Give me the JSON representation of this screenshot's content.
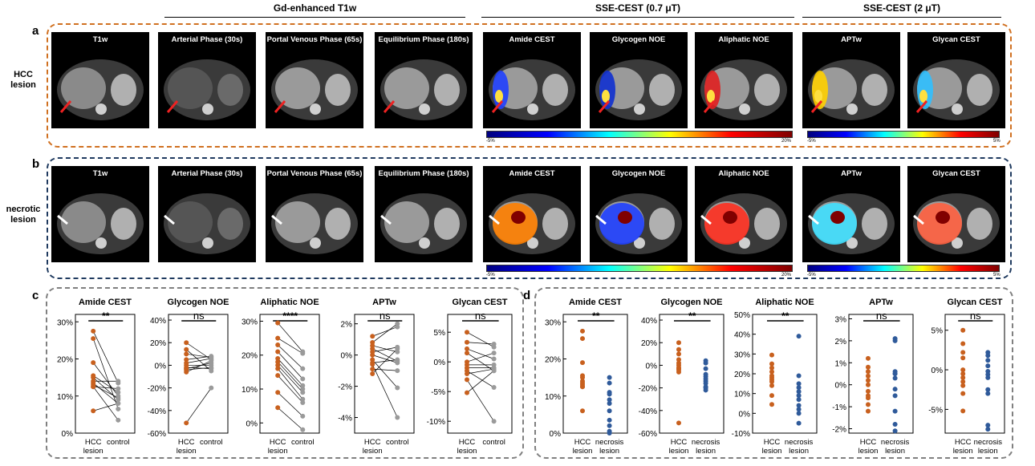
{
  "headers": {
    "gd": "Gd-enhanced T1w",
    "sse07": "SSE-CEST (0.7 μT)",
    "sse2": "SSE-CEST (2 μT)"
  },
  "panels": {
    "a": "a",
    "b": "b",
    "c": "c",
    "d": "d"
  },
  "rows": {
    "a_label_1": "HCC",
    "a_label_2": "lesion",
    "b_label_1": "necrotic",
    "b_label_2": "lesion"
  },
  "image_titles": [
    "T1w",
    "Arterial  Phase (30s)",
    "Portal Venous Phase (65s)",
    "Equilibrium  Phase (180s)",
    "Amide CEST",
    "Glycogen NOE",
    "Aliphatic  NOE",
    "APTw",
    "Glycan  CEST"
  ],
  "colorbars": {
    "sse07": {
      "min": "-5%",
      "max": "20%"
    },
    "sse2": {
      "min": "-5%",
      "max": "5%"
    }
  },
  "colors": {
    "hcc": "#C8601E",
    "control": "#9A9A9A",
    "necrosis": "#2F5A9A",
    "box_a": "#D07020",
    "box_b": "#1F3A5F",
    "box_cd": "#808080"
  },
  "chart_data": [
    {
      "panel": "c",
      "type": "scatter",
      "title": "Amide CEST",
      "sig": "**",
      "categories": [
        "HCC lesion",
        "control"
      ],
      "ylim": [
        0,
        32
      ],
      "yticks": [
        0,
        10,
        20,
        30
      ],
      "tick_labels": [
        "0%",
        "10%",
        "20%",
        "30%"
      ],
      "series": [
        {
          "name": "HCC lesion",
          "values": [
            27.5,
            25.5,
            19,
            15.5,
            15,
            14,
            13.5,
            13,
            12.5,
            12.5,
            6
          ]
        },
        {
          "name": "control",
          "values": [
            13.5,
            6.5,
            10,
            11,
            9,
            14,
            8,
            9.5,
            12,
            3.5,
            8
          ]
        }
      ]
    },
    {
      "panel": "c",
      "type": "scatter",
      "title": "Glycogen NOE",
      "sig": "ns",
      "categories": [
        "HCC lesion",
        "control"
      ],
      "ylim": [
        -60,
        45
      ],
      "yticks": [
        -60,
        -40,
        -20,
        0,
        20,
        40
      ],
      "tick_labels": [
        "-60%",
        "-40%",
        "-20%",
        "0%",
        "20%",
        "40%"
      ],
      "series": [
        {
          "name": "HCC lesion",
          "values": [
            20,
            14,
            10,
            5,
            2,
            0,
            -2,
            -3,
            -4,
            -6,
            -51
          ]
        },
        {
          "name": "control",
          "values": [
            5,
            -5,
            7,
            8,
            6,
            0,
            -3,
            2,
            -2,
            4,
            -20
          ]
        }
      ]
    },
    {
      "panel": "c",
      "type": "scatter",
      "title": "Aliphatic NOE",
      "sig": "****",
      "categories": [
        "HCC lesion",
        "control"
      ],
      "ylim": [
        -3,
        32
      ],
      "yticks": [
        0,
        10,
        20,
        30
      ],
      "tick_labels": [
        "0%",
        "10%",
        "20%",
        "30%"
      ],
      "series": [
        {
          "name": "HCC lesion",
          "values": [
            29.5,
            25,
            23,
            21,
            19,
            18,
            17,
            16,
            14,
            9,
            4.5
          ]
        },
        {
          "name": "control",
          "values": [
            21,
            20.5,
            16,
            13,
            11,
            10,
            9,
            7,
            6,
            2,
            -2
          ]
        }
      ]
    },
    {
      "panel": "c",
      "type": "scatter",
      "title": "APTw",
      "sig": "ns",
      "categories": [
        "HCC lesion",
        "control"
      ],
      "ylim": [
        -5,
        2.6
      ],
      "yticks": [
        -4,
        -2,
        0,
        2
      ],
      "tick_labels": [
        "-4%",
        "-2%",
        "0%",
        "2%"
      ],
      "series": [
        {
          "name": "HCC lesion",
          "values": [
            1.2,
            0.8,
            0.6,
            0.4,
            0.2,
            0,
            -0.3,
            -0.5,
            -0.6,
            -0.9,
            -1.2
          ]
        },
        {
          "name": "control",
          "values": [
            1.8,
            2,
            0.2,
            -0.4,
            0.5,
            -0.5,
            -2.1,
            -0.3,
            -4,
            -1,
            0.4
          ]
        }
      ]
    },
    {
      "panel": "c",
      "type": "scatter",
      "title": "Glycan CEST",
      "sig": "ns",
      "categories": [
        "HCC lesion",
        "control"
      ],
      "ylim": [
        -12,
        8
      ],
      "yticks": [
        -10,
        -5,
        0,
        5
      ],
      "tick_labels": [
        "-10%",
        "-5%",
        "0%",
        "5%"
      ],
      "series": [
        {
          "name": "HCC lesion",
          "values": [
            5,
            3.3,
            2.2,
            1.5,
            0,
            -0.5,
            -1,
            -1.5,
            -2,
            -3,
            -5.2
          ]
        },
        {
          "name": "control",
          "values": [
            2.5,
            3,
            0.5,
            -1.5,
            1.5,
            -0.5,
            -1,
            -4.3,
            -1.2,
            -10,
            -1.5
          ]
        }
      ]
    },
    {
      "panel": "d",
      "type": "scatter",
      "title": "Amide CEST",
      "sig": "**",
      "categories": [
        "HCC lesion",
        "necrosis lesion"
      ],
      "ylim": [
        0,
        32
      ],
      "yticks": [
        0,
        10,
        20,
        30
      ],
      "tick_labels": [
        "0%",
        "10%",
        "20%",
        "30%"
      ],
      "series": [
        {
          "name": "HCC lesion",
          "values": [
            27.5,
            25.5,
            19,
            15.5,
            15,
            14,
            13.5,
            13,
            12.5,
            12.5,
            6
          ]
        },
        {
          "name": "necrosis lesion",
          "values": [
            15,
            13.5,
            11,
            10.5,
            9,
            8,
            6,
            3.5,
            2,
            0.5,
            0
          ]
        }
      ]
    },
    {
      "panel": "d",
      "type": "scatter",
      "title": "Glycogen NOE",
      "sig": "**",
      "categories": [
        "HCC lesion",
        "necrosis lesion"
      ],
      "ylim": [
        -60,
        45
      ],
      "yticks": [
        -60,
        -40,
        -20,
        0,
        20,
        40
      ],
      "tick_labels": [
        "-60%",
        "-40%",
        "-20%",
        "0%",
        "20%",
        "40%"
      ],
      "series": [
        {
          "name": "HCC lesion",
          "values": [
            20,
            14,
            10,
            5,
            2,
            0,
            -2,
            -3,
            -4,
            -6,
            -51
          ]
        },
        {
          "name": "necrosis lesion",
          "values": [
            4,
            2,
            -3,
            -8,
            -10,
            -12,
            -14,
            -16,
            -19,
            -20,
            -22
          ]
        }
      ]
    },
    {
      "panel": "d",
      "type": "scatter",
      "title": "Aliphatic NOE",
      "sig": "**",
      "categories": [
        "HCC lesion",
        "necrosis lesion"
      ],
      "ylim": [
        -10,
        50
      ],
      "yticks": [
        -10,
        0,
        10,
        20,
        30,
        40,
        50
      ],
      "tick_labels": [
        "-10%",
        "0%",
        "10%",
        "20%",
        "30%",
        "40%",
        "50%"
      ],
      "series": [
        {
          "name": "HCC lesion",
          "values": [
            29.5,
            25,
            23,
            21,
            19,
            18,
            17,
            16,
            14,
            9,
            4.5
          ]
        },
        {
          "name": "necrosis lesion",
          "values": [
            39,
            19,
            15,
            13,
            11,
            9,
            7,
            4,
            2,
            0,
            -5
          ]
        }
      ]
    },
    {
      "panel": "d",
      "type": "scatter",
      "title": "APTw",
      "sig": "ns",
      "categories": [
        "HCC lesion",
        "necrosis lesion"
      ],
      "ylim": [
        -2.2,
        3.2
      ],
      "yticks": [
        -2,
        -1,
        0,
        1,
        2,
        3
      ],
      "tick_labels": [
        "-2%",
        "-1%",
        "0%",
        "1%",
        "2%",
        "3%"
      ],
      "series": [
        {
          "name": "HCC lesion",
          "values": [
            1.2,
            0.8,
            0.6,
            0.4,
            0.2,
            0,
            -0.3,
            -0.5,
            -0.6,
            -0.9,
            -1.2
          ]
        },
        {
          "name": "necrosis lesion",
          "values": [
            2.1,
            2,
            0.6,
            0.5,
            0.3,
            -0.2,
            -0.5,
            -1.2,
            -1.8,
            -2.1,
            0.5
          ]
        }
      ]
    },
    {
      "panel": "d",
      "type": "scatter",
      "title": "Glycan CEST",
      "sig": "ns",
      "categories": [
        "HCC lesion",
        "necrosis lesion"
      ],
      "ylim": [
        -8,
        7
      ],
      "yticks": [
        -5,
        0,
        5
      ],
      "tick_labels": [
        "-5%",
        "0%",
        "5%"
      ],
      "series": [
        {
          "name": "HCC lesion",
          "values": [
            5,
            3.3,
            2.2,
            1.5,
            0,
            -0.5,
            -1,
            -1.5,
            -2,
            -3,
            -5.2
          ]
        },
        {
          "name": "necrosis lesion",
          "values": [
            2.2,
            1.8,
            1.2,
            0.5,
            -0.2,
            -0.6,
            -1,
            -2.5,
            -3,
            -7,
            -7.5
          ]
        }
      ]
    }
  ]
}
